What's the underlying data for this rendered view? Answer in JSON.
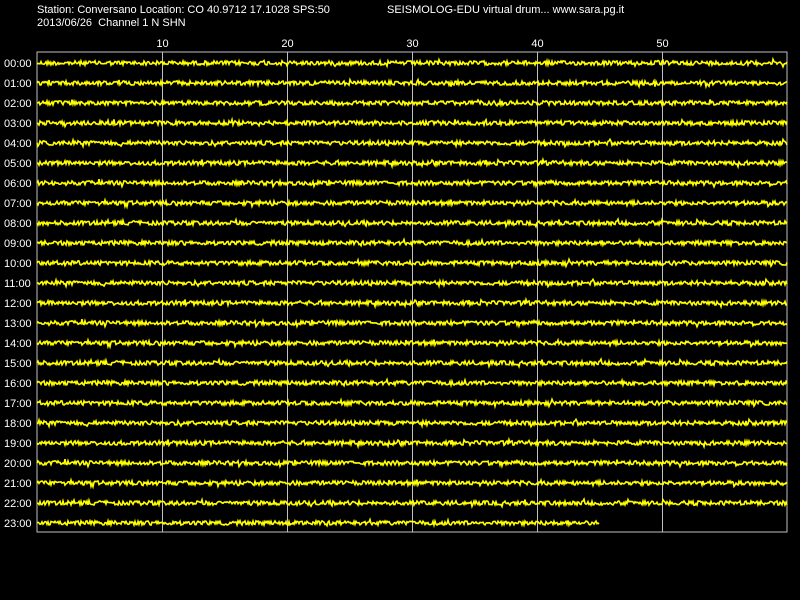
{
  "header": {
    "station_line": "Station: Conversano Location: CO 40.9712 17.1028 SPS:50",
    "product_line": "SEISMOLOG-EDU virtual drum... www.sara.pg.it",
    "date_channel_line": "2013/06/26  Channel 1 N SHN"
  },
  "colors": {
    "background": "#000000",
    "trace": "#ffff00",
    "text": "#ffffff",
    "grid": "#c0c0c0"
  },
  "chart_data": {
    "type": "line",
    "title": "",
    "xlabel": "",
    "ylabel": "",
    "x_tick_labels": [
      "10",
      "20",
      "30",
      "40",
      "50"
    ],
    "x_ticks": [
      10,
      20,
      30,
      40,
      50
    ],
    "xlim": [
      0,
      60
    ],
    "row_labels": [
      "00:00",
      "01:00",
      "02:00",
      "03:00",
      "04:00",
      "05:00",
      "06:00",
      "07:00",
      "08:00",
      "09:00",
      "10:00",
      "11:00",
      "12:00",
      "13:00",
      "14:00",
      "15:00",
      "16:00",
      "17:00",
      "18:00",
      "19:00",
      "20:00",
      "21:00",
      "22:00",
      "23:00"
    ],
    "row_end_minute": [
      60,
      60,
      60,
      60,
      60,
      60,
      60,
      60,
      60,
      60,
      60,
      60,
      60,
      60,
      60,
      60,
      60,
      60,
      60,
      60,
      60,
      60,
      60,
      45
    ],
    "grid": true
  }
}
